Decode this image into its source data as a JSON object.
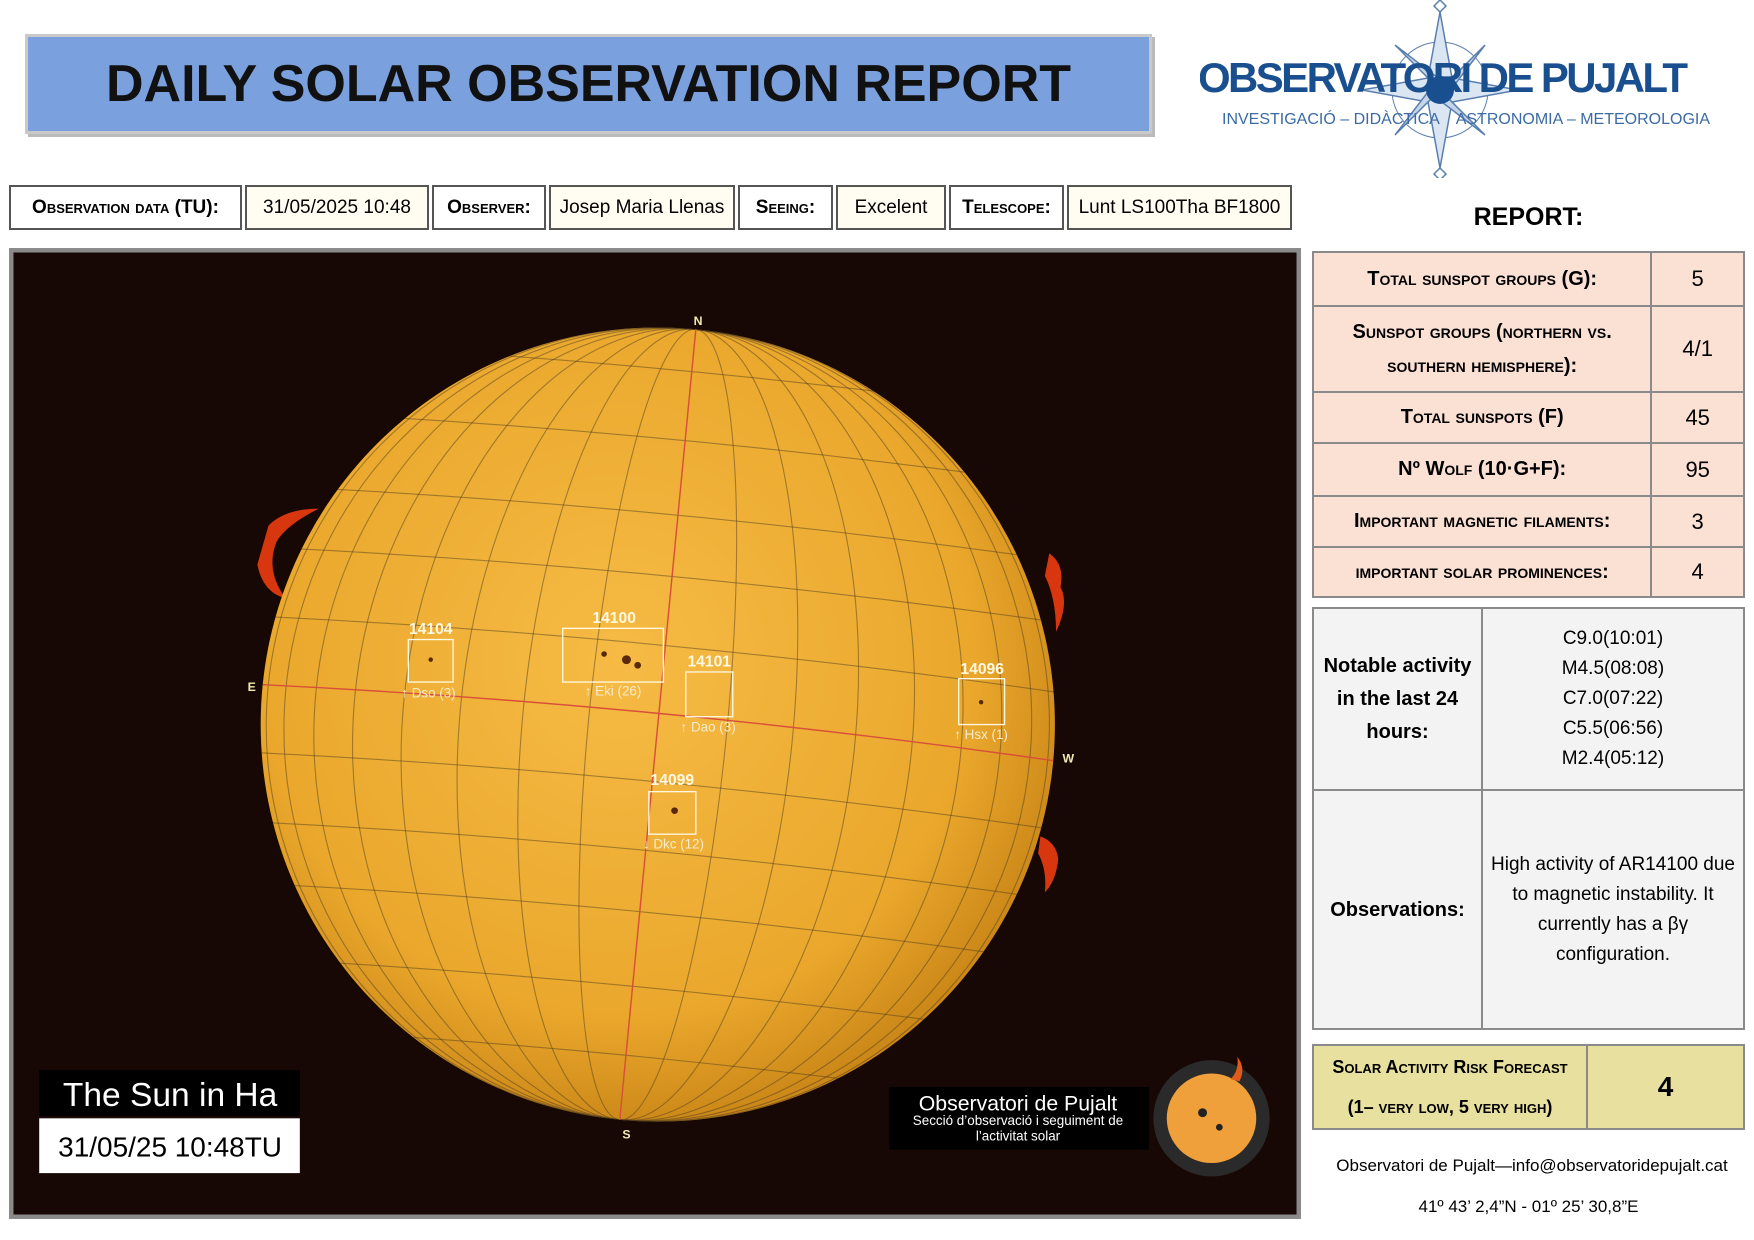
{
  "header": {
    "title": "DAILY SOLAR OBSERVATION REPORT"
  },
  "logo": {
    "name": "OBSERVATORI DE PUJALT",
    "left": "INVESTIGACIÓ – DIDÀCTICA",
    "right": "ASTRONOMIA – METEOROLOGIA"
  },
  "info": [
    {
      "label": "Observation data (TU):",
      "value": "31/05/2025 10:48"
    },
    {
      "label": "Observer:",
      "value": "Josep Maria Llenas"
    },
    {
      "label": "Seeing:",
      "value": "Excelent"
    },
    {
      "label": "Telescope:",
      "value": "Lunt LS100Tha BF1800"
    }
  ],
  "image": {
    "directions": {
      "n": "N",
      "s": "S",
      "e": "E",
      "w": "W"
    },
    "regions": [
      {
        "number": "14104",
        "class": "↑ Dso (3)"
      },
      {
        "number": "14100",
        "class": "↑ Eki (26)"
      },
      {
        "number": "14101",
        "class": "↑ Dao (3)"
      },
      {
        "number": "14096",
        "class": "↑ Hsx (1)"
      },
      {
        "number": "14099",
        "class": "↓ Dkc (12)"
      }
    ],
    "caption": "The Sun in Ha",
    "timestamp": "31/05/25 10:48TU",
    "watermark": {
      "name": "Observatori de Pujalt",
      "text": "Secció d’observació i seguiment de l’activitat solar"
    }
  },
  "report": {
    "title": "REPORT:",
    "rows": [
      {
        "label": "Total sunspot groups (G):",
        "value": "5"
      },
      {
        "label": "Sunspot groups (northern vs. southern hemisphere):",
        "value": "4/1"
      },
      {
        "label": "Total sunspots (F)",
        "value": "45"
      },
      {
        "label": "Nº Wolf (10·G+F):",
        "value": "95"
      },
      {
        "label": "Important magnetic filaments:",
        "value": "3"
      },
      {
        "label": "important solar prominences:",
        "value": "4"
      }
    ]
  },
  "activity": {
    "label": "Notable activity in the last 24 hours:",
    "items": [
      "C9.0(10:01)",
      "M4.5(08:08)",
      "C7.0(07:22)",
      "C5.5(06:56)",
      "M2.4(05:12)"
    ]
  },
  "observations": {
    "label": "Observations:",
    "text": "High activity of AR14100 due to magnetic instability. It currently has a βγ configuration."
  },
  "forecast": {
    "label": "Solar Activity Risk Forecast",
    "scale": "(1– very low, 5 very high)",
    "value": "4"
  },
  "footer": {
    "contact": "Observatori de Pujalt—info@observatoridepujalt.cat",
    "coordinates": "41º 43’ 2,4”N - 01º 25’ 30,8”E"
  }
}
